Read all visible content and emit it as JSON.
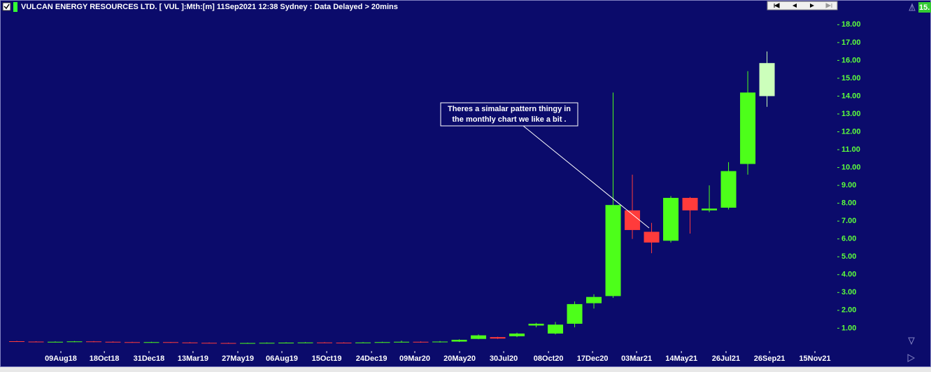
{
  "chart_data": {
    "type": "candlestick",
    "title": "VULCAN ENERGY RESOURCES LTD. [ VUL ]:Mth:[m]  11Sep2021 12:38 Sydney : Data Delayed > 20mins",
    "last_price_label": "15.",
    "annotation": [
      "Theres a simalar pattern thingy in",
      "the monthly chart we like a bit ."
    ],
    "categories": [
      null,
      null,
      null,
      null,
      null,
      null,
      null,
      null,
      null,
      null,
      null,
      null,
      null,
      null,
      null,
      null,
      null,
      null,
      null,
      null,
      null,
      null,
      null,
      null,
      null,
      null,
      null,
      null,
      null,
      null,
      null,
      null,
      null,
      null,
      null,
      null,
      null,
      null,
      null,
      null
    ],
    "series": [
      {
        "open": [
          0.27,
          0.25,
          0.23,
          0.24,
          0.26,
          0.24,
          0.22,
          0.21,
          0.22,
          0.2,
          0.18,
          0.17,
          0.16,
          0.17,
          0.18,
          0.19,
          0.2,
          0.19,
          0.18,
          0.2,
          0.22,
          0.24,
          0.22,
          0.25,
          0.4,
          0.5,
          0.55,
          1.15,
          0.7,
          1.25,
          2.4,
          2.8,
          7.6,
          6.4,
          5.9,
          8.3,
          7.6,
          7.75,
          10.2,
          14.0
        ],
        "high": [
          0.29,
          0.27,
          0.26,
          0.28,
          0.28,
          0.26,
          0.24,
          0.24,
          0.23,
          0.22,
          0.2,
          0.19,
          0.19,
          0.2,
          0.21,
          0.22,
          0.22,
          0.21,
          0.22,
          0.24,
          0.3,
          0.26,
          0.28,
          0.38,
          0.65,
          0.52,
          0.75,
          1.3,
          1.35,
          2.5,
          2.9,
          14.2,
          9.6,
          6.9,
          8.4,
          8.35,
          9.0,
          10.3,
          15.4,
          16.5
        ],
        "low": [
          0.23,
          0.22,
          0.21,
          0.22,
          0.22,
          0.2,
          0.19,
          0.19,
          0.18,
          0.16,
          0.15,
          0.14,
          0.14,
          0.15,
          0.16,
          0.17,
          0.17,
          0.16,
          0.17,
          0.19,
          0.2,
          0.19,
          0.2,
          0.23,
          0.38,
          0.4,
          0.5,
          1.05,
          0.65,
          1.05,
          2.1,
          2.7,
          6.0,
          5.2,
          5.8,
          6.3,
          7.5,
          7.65,
          9.6,
          13.4
        ],
        "close": [
          0.25,
          0.23,
          0.24,
          0.26,
          0.24,
          0.22,
          0.21,
          0.22,
          0.2,
          0.18,
          0.17,
          0.16,
          0.17,
          0.18,
          0.19,
          0.2,
          0.19,
          0.18,
          0.2,
          0.22,
          0.24,
          0.22,
          0.25,
          0.35,
          0.6,
          0.42,
          0.7,
          1.25,
          1.2,
          2.35,
          2.75,
          7.9,
          6.5,
          5.8,
          8.3,
          7.6,
          7.7,
          9.8,
          14.2,
          15.85
        ],
        "up_color": "#4dff1a",
        "down_color": "#ff3b3b",
        "last_color": "#ccffbb"
      }
    ],
    "xlim": [
      -0.51,
      42.58
    ],
    "xticks": [
      {
        "value": 2.29,
        "label": "09Aug18"
      },
      {
        "value": 4.55,
        "label": "18Oct18"
      },
      {
        "value": 6.87,
        "label": "31Dec18"
      },
      {
        "value": 9.16,
        "label": "13Mar19"
      },
      {
        "value": 11.49,
        "label": "27May19"
      },
      {
        "value": 13.78,
        "label": "06Aug19"
      },
      {
        "value": 16.11,
        "label": "15Oct19"
      },
      {
        "value": 18.44,
        "label": "24Dec19"
      },
      {
        "value": 20.69,
        "label": "09Mar20"
      },
      {
        "value": 23.02,
        "label": "20May20"
      },
      {
        "value": 25.31,
        "label": "30Jul20"
      },
      {
        "value": 27.64,
        "label": "08Oct20"
      },
      {
        "value": 29.93,
        "label": "17Dec20"
      },
      {
        "value": 32.22,
        "label": "03Mar21"
      },
      {
        "value": 34.55,
        "label": "14May21"
      },
      {
        "value": 36.87,
        "label": "26Jul21"
      },
      {
        "value": 39.13,
        "label": "26Sep21"
      },
      {
        "value": 41.49,
        "label": "15Nov21"
      }
    ],
    "ylim": [
      -0.2,
      18.6
    ],
    "yticks": [
      {
        "value": 1,
        "label": "1.00"
      },
      {
        "value": 2,
        "label": "2.00"
      },
      {
        "value": 3,
        "label": "3.00"
      },
      {
        "value": 4,
        "label": "4.00"
      },
      {
        "value": 5,
        "label": "5.00"
      },
      {
        "value": 6,
        "label": "6.00"
      },
      {
        "value": 7,
        "label": "7.00"
      },
      {
        "value": 8,
        "label": "8.00"
      },
      {
        "value": 9,
        "label": "9.00"
      },
      {
        "value": 10,
        "label": "10.00"
      },
      {
        "value": 11,
        "label": "11.00"
      },
      {
        "value": 12,
        "label": "12.00"
      },
      {
        "value": 13,
        "label": "13.00"
      },
      {
        "value": 14,
        "label": "14.00"
      },
      {
        "value": 15,
        "label": "15.00"
      },
      {
        "value": 16,
        "label": "16.00"
      },
      {
        "value": 17,
        "label": "17.00"
      },
      {
        "value": 18,
        "label": "18.00"
      }
    ]
  }
}
